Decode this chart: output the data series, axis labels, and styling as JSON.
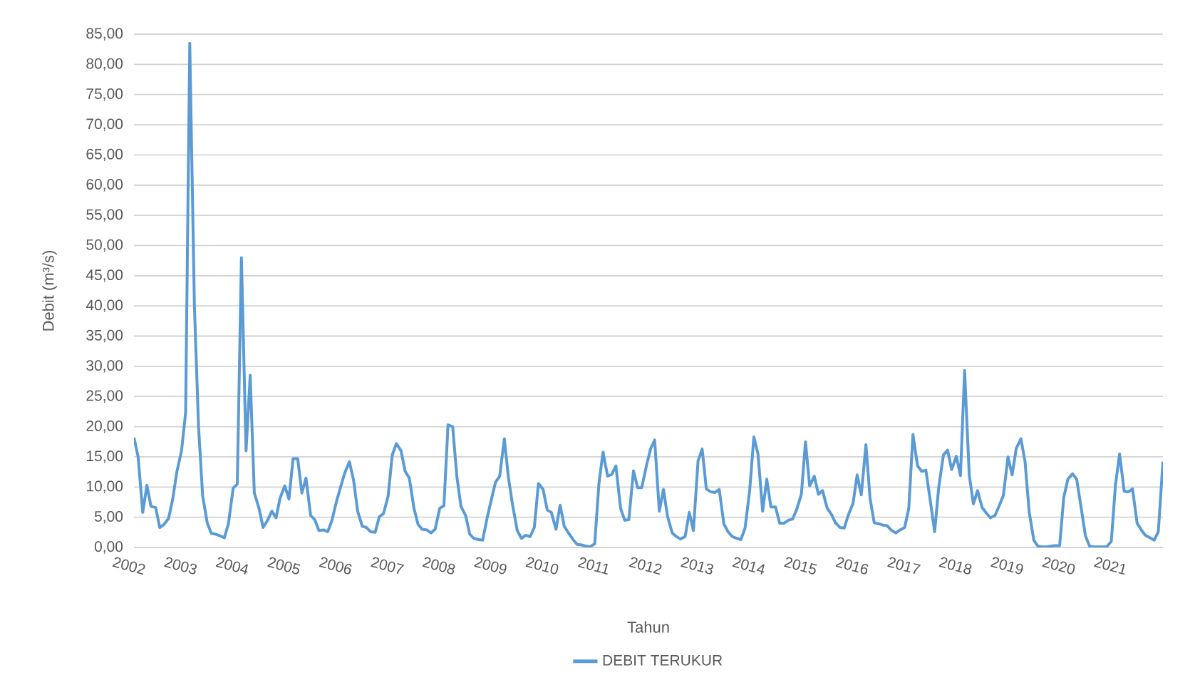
{
  "chart_data": {
    "type": "line",
    "xlabel": "Tahun",
    "ylabel": "Debit (m³/s)",
    "xlim": [
      "2002-01",
      "2021-12"
    ],
    "xticks": [
      "2002",
      "2003",
      "2004",
      "2005",
      "2006",
      "2007",
      "2008",
      "2009",
      "2010",
      "2011",
      "2012",
      "2013",
      "2014",
      "2015",
      "2016",
      "2017",
      "2018",
      "2019",
      "2020",
      "2021"
    ],
    "ylim": [
      0,
      85
    ],
    "yticks": [
      {
        "value": 0,
        "label": "0,00"
      },
      {
        "value": 5,
        "label": "5,00"
      },
      {
        "value": 10,
        "label": "10,00"
      },
      {
        "value": 15,
        "label": "15,00"
      },
      {
        "value": 20,
        "label": "20,00"
      },
      {
        "value": 25,
        "label": "25,00"
      },
      {
        "value": 30,
        "label": "30,00"
      },
      {
        "value": 35,
        "label": "35,00"
      },
      {
        "value": 40,
        "label": "40,00"
      },
      {
        "value": 45,
        "label": "45,00"
      },
      {
        "value": 50,
        "label": "50,00"
      },
      {
        "value": 55,
        "label": "55,00"
      },
      {
        "value": 60,
        "label": "60,00"
      },
      {
        "value": 65,
        "label": "65,00"
      },
      {
        "value": 70,
        "label": "70,00"
      },
      {
        "value": 75,
        "label": "75,00"
      },
      {
        "value": 80,
        "label": "80,00"
      },
      {
        "value": 85,
        "label": "85,00"
      }
    ],
    "grid": "y",
    "legend": "bottom",
    "marker": "none",
    "line_style": "solid",
    "x": [
      "2002-01",
      "2002-02",
      "2002-03",
      "2002-04",
      "2002-05",
      "2002-06",
      "2002-07",
      "2002-08",
      "2002-09",
      "2002-10",
      "2002-11",
      "2002-12",
      "2003-01",
      "2003-02",
      "2003-03",
      "2003-04",
      "2003-05",
      "2003-06",
      "2003-07",
      "2003-08",
      "2003-09",
      "2003-10",
      "2003-11",
      "2003-12",
      "2004-01",
      "2004-02",
      "2004-03",
      "2004-04",
      "2004-05",
      "2004-06",
      "2004-07",
      "2004-08",
      "2004-09",
      "2004-10",
      "2004-11",
      "2004-12",
      "2005-01",
      "2005-02",
      "2005-03",
      "2005-04",
      "2005-05",
      "2005-06",
      "2005-07",
      "2005-08",
      "2005-09",
      "2005-10",
      "2005-11",
      "2005-12",
      "2006-01",
      "2006-02",
      "2006-03",
      "2006-04",
      "2006-05",
      "2006-06",
      "2006-07",
      "2006-08",
      "2006-09",
      "2006-10",
      "2006-11",
      "2006-12",
      "2007-01",
      "2007-02",
      "2007-03",
      "2007-04",
      "2007-05",
      "2007-06",
      "2007-07",
      "2007-08",
      "2007-09",
      "2007-10",
      "2007-11",
      "2007-12",
      "2008-01",
      "2008-02",
      "2008-03",
      "2008-04",
      "2008-05",
      "2008-06",
      "2008-07",
      "2008-08",
      "2008-09",
      "2008-10",
      "2008-11",
      "2008-12",
      "2009-01",
      "2009-02",
      "2009-03",
      "2009-04",
      "2009-05",
      "2009-06",
      "2009-07",
      "2009-08",
      "2009-09",
      "2009-10",
      "2009-11",
      "2009-12",
      "2010-01",
      "2010-02",
      "2010-03",
      "2010-04",
      "2010-05",
      "2010-06",
      "2010-07",
      "2010-08",
      "2010-09",
      "2010-10",
      "2010-11",
      "2010-12",
      "2011-01",
      "2011-02",
      "2011-03",
      "2011-04",
      "2011-05",
      "2011-06",
      "2011-07",
      "2011-08",
      "2011-09",
      "2011-10",
      "2011-11",
      "2011-12",
      "2012-01",
      "2012-02",
      "2012-03",
      "2012-04",
      "2012-05",
      "2012-06",
      "2012-07",
      "2012-08",
      "2012-09",
      "2012-10",
      "2012-11",
      "2012-12",
      "2013-01",
      "2013-02",
      "2013-03",
      "2013-04",
      "2013-05",
      "2013-06",
      "2013-07",
      "2013-08",
      "2013-09",
      "2013-10",
      "2013-11",
      "2013-12",
      "2014-01",
      "2014-02",
      "2014-03",
      "2014-04",
      "2014-05",
      "2014-06",
      "2014-07",
      "2014-08",
      "2014-09",
      "2014-10",
      "2014-11",
      "2014-12",
      "2015-01",
      "2015-02",
      "2015-03",
      "2015-04",
      "2015-05",
      "2015-06",
      "2015-07",
      "2015-08",
      "2015-09",
      "2015-10",
      "2015-11",
      "2015-12",
      "2016-01",
      "2016-02",
      "2016-03",
      "2016-04",
      "2016-05",
      "2016-06",
      "2016-07",
      "2016-08",
      "2016-09",
      "2016-10",
      "2016-11",
      "2016-12",
      "2017-01",
      "2017-02",
      "2017-03",
      "2017-04",
      "2017-05",
      "2017-06",
      "2017-07",
      "2017-08",
      "2017-09",
      "2017-10",
      "2017-11",
      "2017-12",
      "2018-01",
      "2018-02",
      "2018-03",
      "2018-04",
      "2018-05",
      "2018-06",
      "2018-07",
      "2018-08",
      "2018-09",
      "2018-10",
      "2018-11",
      "2018-12",
      "2019-01",
      "2019-02",
      "2019-03",
      "2019-04",
      "2019-05",
      "2019-06",
      "2019-07",
      "2019-08",
      "2019-09",
      "2019-10",
      "2019-11",
      "2019-12",
      "2020-01",
      "2020-02",
      "2020-03",
      "2020-04",
      "2020-05",
      "2020-06",
      "2020-07",
      "2020-08",
      "2020-09",
      "2020-10",
      "2020-11",
      "2020-12",
      "2021-01",
      "2021-02",
      "2021-03",
      "2021-04",
      "2021-05",
      "2021-06",
      "2021-07",
      "2021-08",
      "2021-09",
      "2021-10",
      "2021-11",
      "2021-12"
    ],
    "series": [
      {
        "name": "DEBIT TERUKUR",
        "color": "#5b9bd5",
        "values": [
          18.2,
          15,
          5.8,
          10.3,
          6.8,
          6.6,
          3.3,
          3.8,
          4.8,
          8,
          12.5,
          16,
          22.3,
          83.5,
          40,
          20,
          8.5,
          4,
          2.3,
          2.2,
          1.9,
          1.6,
          4,
          9.8,
          10.5,
          48,
          16,
          28.5,
          9,
          6.5,
          3.3,
          4.4,
          6,
          4.9,
          8.2,
          10.2,
          8,
          14.7,
          14.7,
          9,
          11.5,
          5.3,
          4.6,
          2.8,
          2.9,
          2.6,
          4.4,
          7.6,
          10,
          12.3,
          14.2,
          11.2,
          6,
          3.5,
          3.3,
          2.6,
          2.5,
          5.1,
          5.6,
          8.5,
          15.3,
          17.2,
          16,
          12.6,
          11.5,
          6.5,
          3.8,
          3,
          2.9,
          2.4,
          3,
          6.5,
          6.9,
          20.3,
          20,
          11.8,
          6.8,
          5.3,
          2.2,
          1.5,
          1.3,
          1.2,
          4.6,
          8,
          10.8,
          11.8,
          18,
          11.5,
          7,
          2.8,
          1.5,
          2,
          1.8,
          3.3,
          10.6,
          9.6,
          6.2,
          5.8,
          3,
          7,
          3.5,
          2.3,
          1.3,
          0.5,
          0.4,
          0.2,
          0.1,
          0.6,
          10.5,
          15.8,
          11.8,
          12.1,
          13.5,
          6.5,
          4.5,
          4.6,
          12.7,
          9.9,
          9.9,
          13.5,
          16.3,
          17.8,
          6,
          9.6,
          5.1,
          2.4,
          1.8,
          1.4,
          1.8,
          5.8,
          2.8,
          14.3,
          16.3,
          9.7,
          9.2,
          9.1,
          9.6,
          3.9,
          2.6,
          1.8,
          1.5,
          1.3,
          3.2,
          9.5,
          18.3,
          15.5,
          6,
          11.3,
          6.7,
          6.7,
          4,
          4,
          4.5,
          4.7,
          6.3,
          8.8,
          17.5,
          10.2,
          11.8,
          8.8,
          9.4,
          6.5,
          5.5,
          4.1,
          3.3,
          3.2,
          5.4,
          7.3,
          12,
          8.7,
          17,
          8.1,
          4.1,
          3.9,
          3.7,
          3.6,
          2.8,
          2.4,
          2.9,
          3.3,
          6.5,
          18.7,
          13.5,
          12.6,
          12.8,
          7.5,
          2.6,
          10,
          15.3,
          16.1,
          12.9,
          15.1,
          11.9,
          29.3,
          12,
          7.2,
          9.4,
          6.6,
          5.7,
          4.9,
          5.3,
          6.9,
          8.6,
          15,
          12,
          16.4,
          18,
          14.2,
          5.9,
          1.2,
          0.2,
          0.1,
          0.1,
          0.2,
          0.3,
          0.3,
          8.3,
          11.3,
          12.2,
          11.3,
          6.9,
          1.9,
          0.2,
          0.1,
          0.1,
          0.1,
          0.1,
          1,
          10.3,
          15.5,
          9.3,
          9.2,
          9.7,
          4,
          2.9,
          2,
          1.6,
          1.2,
          2.6,
          14.2
        ]
      }
    ]
  }
}
